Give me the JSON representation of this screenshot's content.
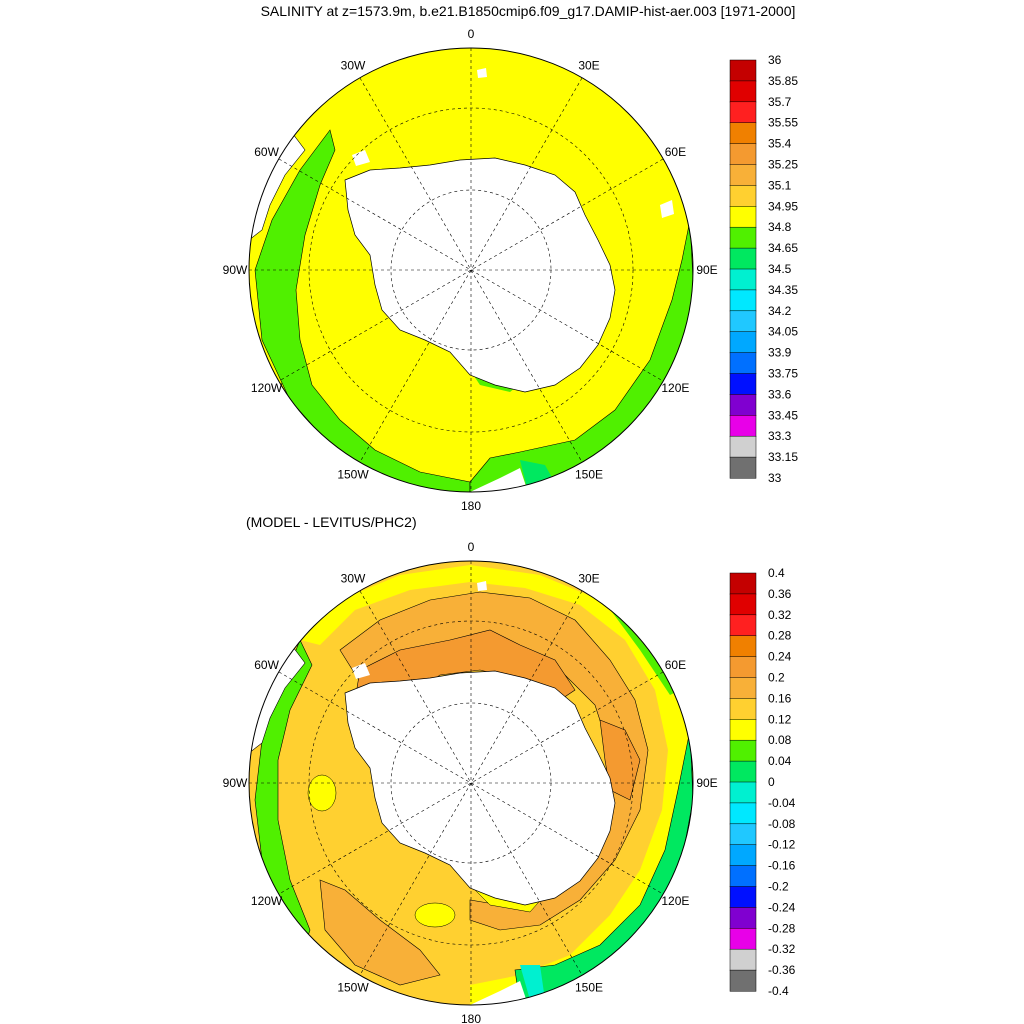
{
  "figure": {
    "title": "SALINITY at z=1573.9m, b.e21.B1850cmip6.f09_g17.DAMIP-hist-aer.003 [1971-2000]",
    "subtitle": "(MODEL - LEVITUS/PHC2)"
  },
  "maps": [
    {
      "id": "salinity",
      "lon_labels": [
        "0",
        "30E",
        "60E",
        "90E",
        "120E",
        "150E",
        "180",
        "150W",
        "120W",
        "90W",
        "60W",
        "30W"
      ],
      "colorbar": {
        "labels": [
          "36",
          "35.85",
          "35.7",
          "35.55",
          "35.4",
          "35.25",
          "35.1",
          "34.95",
          "34.8",
          "34.65",
          "34.5",
          "34.35",
          "34.2",
          "34.05",
          "33.9",
          "33.75",
          "33.6",
          "33.45",
          "33.3",
          "33.15",
          "33"
        ],
        "colors": [
          "#c40000",
          "#e00000",
          "#ff2020",
          "#f08000",
          "#f49a30",
          "#f8b038",
          "#ffd030",
          "#ffff00",
          "#50f000",
          "#00e860",
          "#00f0d0",
          "#00e8ff",
          "#20c8ff",
          "#00a8ff",
          "#0070ff",
          "#0010ff",
          "#8000d0",
          "#e800e8",
          "#d0d0d0",
          "#707070"
        ]
      }
    },
    {
      "id": "difference",
      "lon_labels": [
        "0",
        "30E",
        "60E",
        "90E",
        "120E",
        "150E",
        "180",
        "150W",
        "120W",
        "90W",
        "60W",
        "30W"
      ],
      "colorbar": {
        "labels": [
          "0.4",
          "0.36",
          "0.32",
          "0.28",
          "0.24",
          "0.2",
          "0.16",
          "0.12",
          "0.08",
          "0.04",
          "0",
          "-0.04",
          "-0.08",
          "-0.12",
          "-0.16",
          "-0.2",
          "-0.24",
          "-0.28",
          "-0.32",
          "-0.36",
          "-0.4"
        ],
        "colors": [
          "#c40000",
          "#e00000",
          "#ff2020",
          "#f08000",
          "#f49a30",
          "#f8b038",
          "#ffd030",
          "#ffff00",
          "#50f000",
          "#00e860",
          "#00f0d0",
          "#00e8ff",
          "#20c8ff",
          "#00a8ff",
          "#0070ff",
          "#0010ff",
          "#8000d0",
          "#e800e8",
          "#d0d0d0",
          "#707070"
        ]
      }
    }
  ]
}
